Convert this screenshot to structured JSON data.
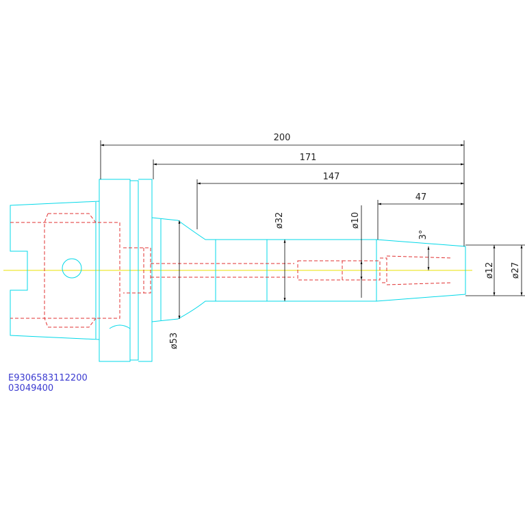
{
  "dimensions": {
    "overall_length": "200",
    "length_171": "171",
    "length_147": "147",
    "length_47": "47",
    "dia_32": "ø32",
    "dia_10": "ø10",
    "angle": "3°",
    "dia_53": "ø53",
    "dia_12": "ø12",
    "dia_27": "ø27"
  },
  "labels": {
    "part_number": "E9306583112200",
    "code": "03049400"
  }
}
